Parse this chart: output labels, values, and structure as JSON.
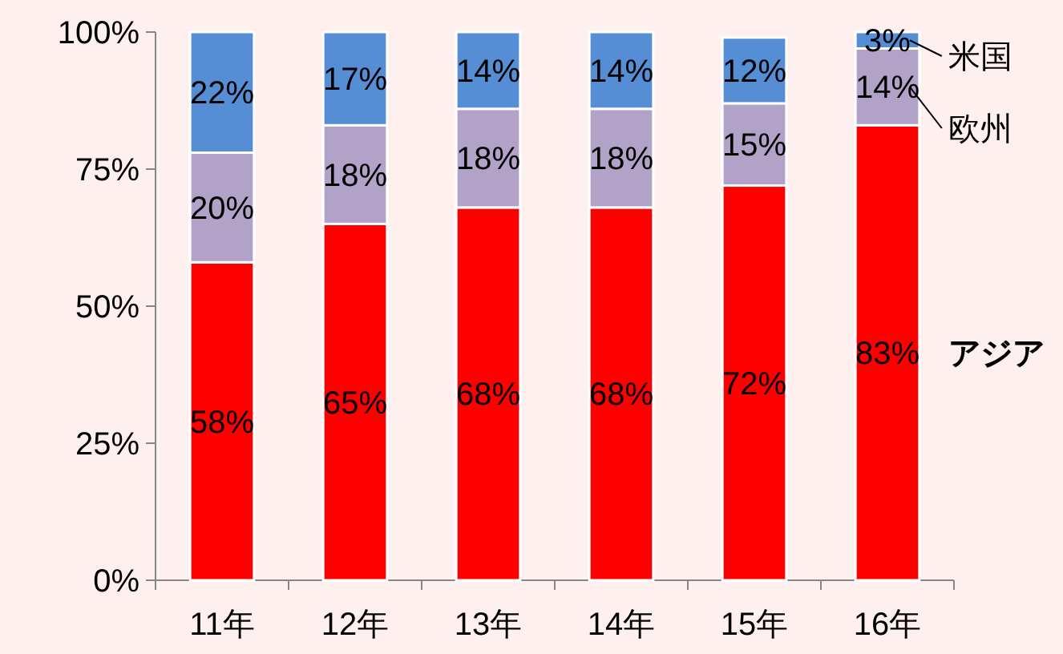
{
  "chart_data": {
    "type": "bar",
    "stacked": true,
    "data_labels": true,
    "categories": [
      "11年",
      "12年",
      "13年",
      "14年",
      "15年",
      "16年"
    ],
    "series": [
      {
        "name": "アジア",
        "color": "#ff0000",
        "values": [
          58,
          65,
          68,
          68,
          72,
          83
        ],
        "value_labels": [
          "58%",
          "65%",
          "68%",
          "68%",
          "72%",
          "83%"
        ]
      },
      {
        "name": "欧州",
        "color": "#b3a2c7",
        "values": [
          20,
          18,
          18,
          18,
          15,
          14
        ],
        "value_labels": [
          "20%",
          "18%",
          "18%",
          "18%",
          "15%",
          "14%"
        ]
      },
      {
        "name": "米国",
        "color": "#558ed5",
        "values": [
          22,
          17,
          14,
          14,
          12,
          3
        ],
        "value_labels": [
          "22%",
          "17%",
          "14%",
          "14%",
          "12%",
          "3%"
        ]
      }
    ],
    "ylim": [
      0,
      100
    ],
    "yticks": [
      {
        "value": 0,
        "label": "0%"
      },
      {
        "value": 25,
        "label": "25%"
      },
      {
        "value": 50,
        "label": "50%"
      },
      {
        "value": 75,
        "label": "75%"
      },
      {
        "value": 100,
        "label": "100%"
      }
    ]
  }
}
